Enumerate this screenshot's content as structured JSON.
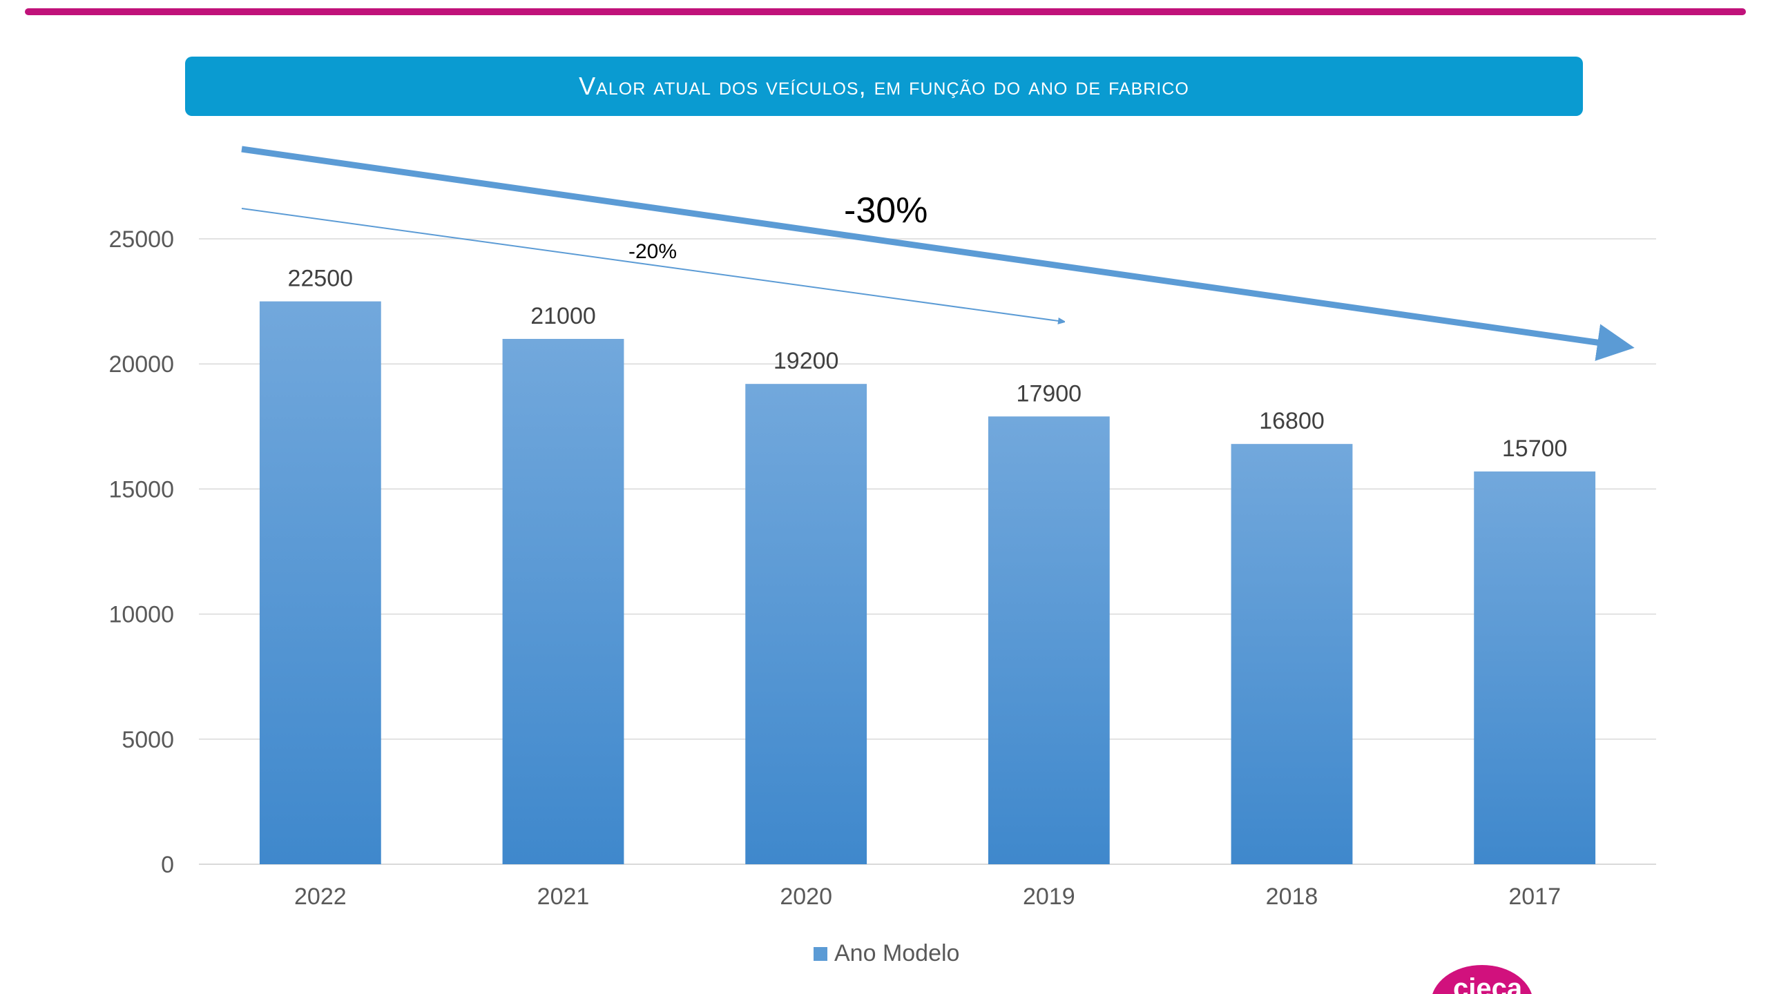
{
  "colors": {
    "accent_rule": "#c0127a",
    "title_banner": "#0a9bd1",
    "bar_top": "#72a8dc",
    "bar_bottom": "#3f88cc",
    "arrow": "#5b9bd5",
    "grid": "#d9d9d9",
    "text": "#595959",
    "logo": "#d1117d"
  },
  "title": "Valor atual dos veículos, em função do ano de fabrico",
  "logo": {
    "text": "cieca"
  },
  "annotations": {
    "big_arrow_label": "-30%",
    "small_arrow_label": "-20%"
  },
  "chart_data": {
    "type": "bar",
    "title": "Valor atual dos veículos, em função do ano de fabrico",
    "categories": [
      "2022",
      "2021",
      "2020",
      "2019",
      "2018",
      "2017"
    ],
    "series": [
      {
        "name": "Ano Modelo",
        "values": [
          22500,
          21000,
          19200,
          17900,
          16800,
          15700
        ]
      }
    ],
    "data_labels": [
      "22500",
      "21000",
      "19200",
      "17900",
      "16800",
      "15700"
    ],
    "yticks": [
      "0",
      "5000",
      "10000",
      "15000",
      "20000",
      "25000"
    ],
    "ylim": [
      0,
      25000
    ],
    "grid": true,
    "legend": "bottom"
  }
}
